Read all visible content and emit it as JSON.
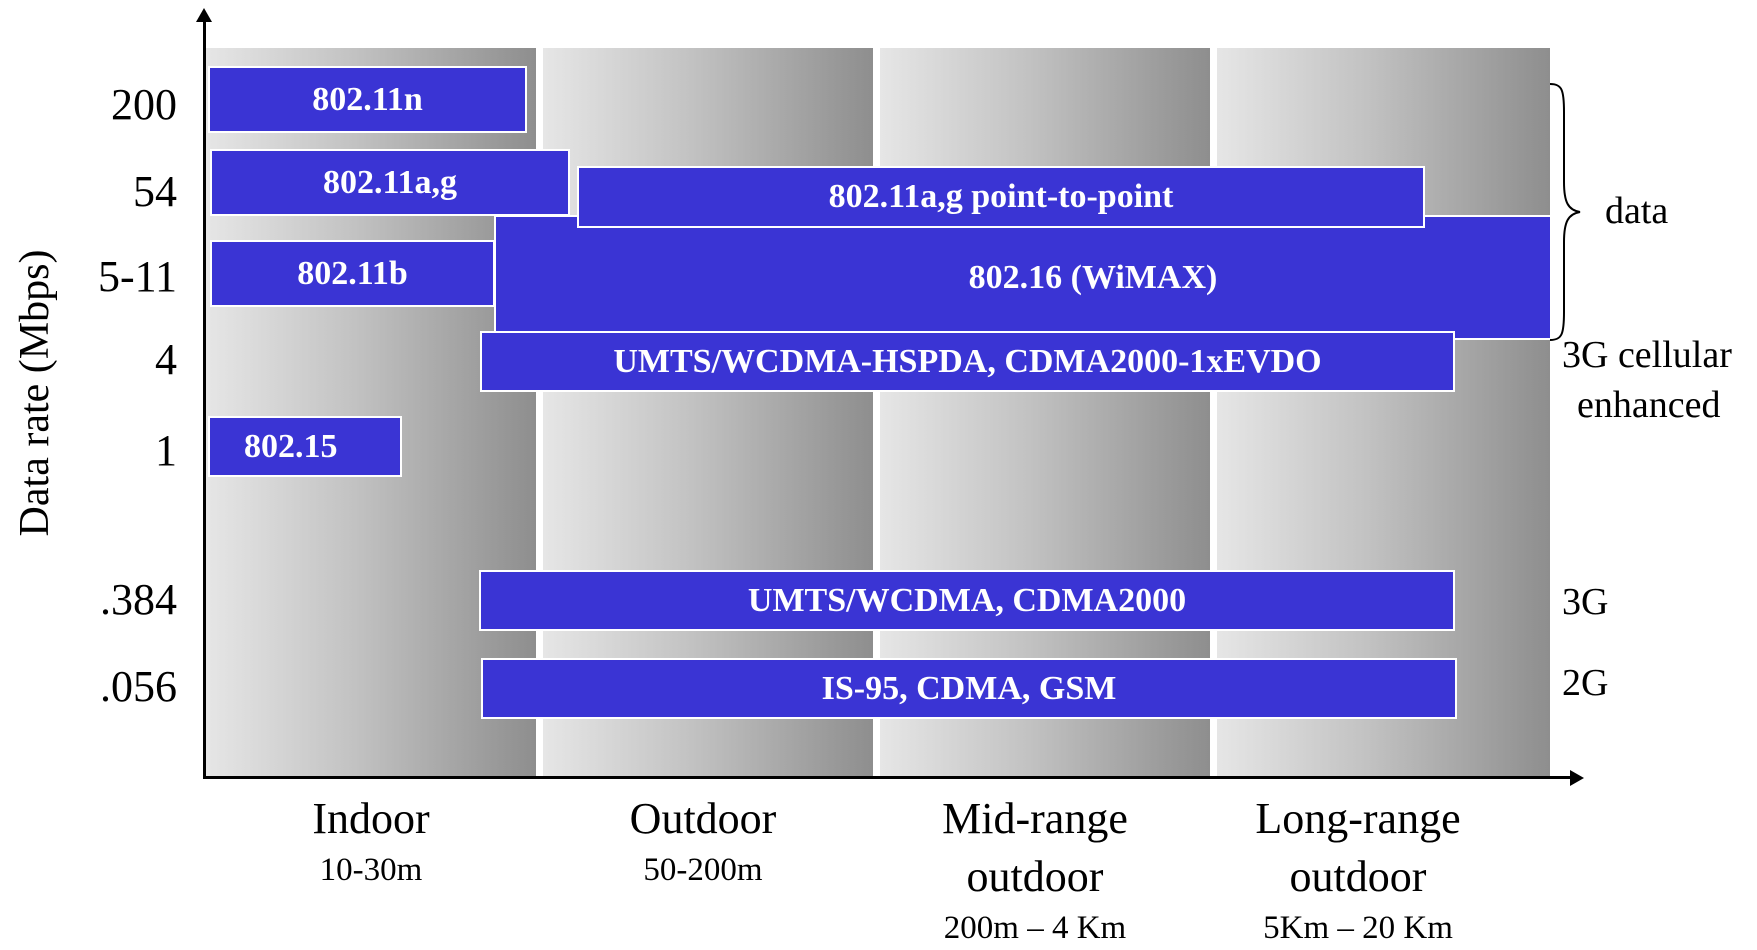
{
  "y_axis": {
    "label": "Data rate (Mbps)",
    "ticks": [
      "200",
      "54",
      "5-11",
      "4",
      "1",
      ".384",
      ".056"
    ]
  },
  "x_categories": [
    {
      "name": "Indoor",
      "range": "10-30m"
    },
    {
      "name": "Outdoor",
      "range": "50-200m"
    },
    {
      "name": "Mid-range outdoor",
      "line1": "Mid-range",
      "line2": "outdoor",
      "range": "200m – 4 Km"
    },
    {
      "name": "Long-range outdoor",
      "line1": "Long-range",
      "line2": "outdoor",
      "range": "5Km – 20 Km"
    }
  ],
  "bars": [
    {
      "label": "802.11n"
    },
    {
      "label": "802.11a,g"
    },
    {
      "label": "802.11a,g point-to-point"
    },
    {
      "label": "802.11b"
    },
    {
      "label": "802.16 (WiMAX)"
    },
    {
      "label": "UMTS/WCDMA-HSPDA, CDMA2000-1xEVDO"
    },
    {
      "label": "802.15"
    },
    {
      "label": "UMTS/WCDMA, CDMA2000"
    },
    {
      "label": "IS-95, CDMA, GSM"
    }
  ],
  "right_labels": {
    "data": "data",
    "cellular_line1": "3G cellular",
    "cellular_line2": "enhanced",
    "g3": "3G",
    "g2": "2G"
  },
  "colors": {
    "bar": "#3a34d4",
    "bar_text": "#ffffff"
  }
}
